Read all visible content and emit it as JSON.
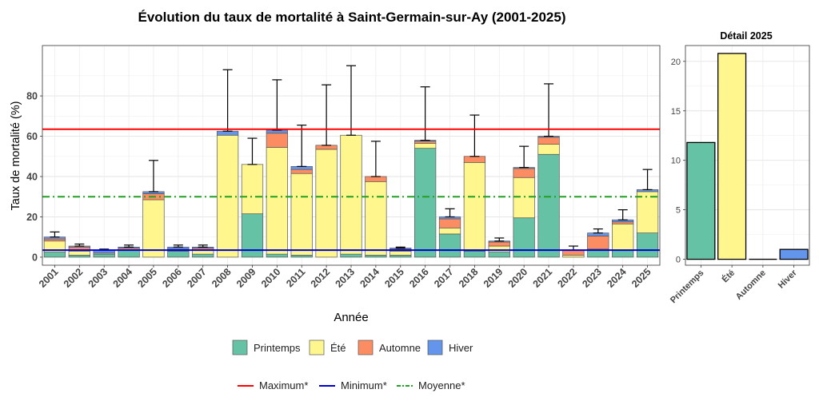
{
  "chart_data": [
    {
      "type": "bar",
      "stacked": true,
      "title": "Évolution du taux de mortalité à Saint-Germain-sur-Ay (2001-2025)",
      "xlabel": "Année",
      "ylabel": "Taux de mortalité (%)",
      "ylim": [
        -4,
        105
      ],
      "yticks": [
        0,
        20,
        40,
        60,
        80
      ],
      "grid": true,
      "categories": [
        "2001",
        "2002",
        "2003",
        "2004",
        "2005",
        "2006",
        "2007",
        "2008",
        "2009",
        "2010",
        "2011",
        "2012",
        "2013",
        "2014",
        "2015",
        "2016",
        "2017",
        "2018",
        "2019",
        "2020",
        "2021",
        "2022",
        "2023",
        "2024",
        "2025"
      ],
      "series": [
        {
          "name": "Printemps",
          "color": "#66c2a5",
          "values": [
            2.5,
            1.0,
            1.5,
            3.5,
            0,
            3.0,
            1.5,
            0,
            21.5,
            1.5,
            1.0,
            0,
            1.5,
            1.0,
            1.0,
            54.0,
            11.5,
            3.0,
            2.5,
            19.5,
            51.0,
            0,
            3.5,
            3.5,
            12.0
          ]
        },
        {
          "name": "Été",
          "color": "#fff78e",
          "values": [
            5.5,
            2.0,
            0.5,
            0,
            28.5,
            0,
            2.0,
            60.5,
            24.5,
            53.0,
            40.5,
            53.5,
            59.0,
            36.5,
            2.0,
            2.5,
            3.0,
            44.0,
            3.0,
            20.0,
            5.0,
            1.0,
            0.5,
            13.0,
            20.5
          ]
        },
        {
          "name": "Automne",
          "color": "#fc8d62",
          "values": [
            1.0,
            2.0,
            0,
            1.0,
            3.0,
            1.0,
            1.0,
            0,
            0,
            7.0,
            2.0,
            2.0,
            0,
            2.5,
            1.0,
            1.0,
            4.5,
            3.0,
            2.0,
            4.5,
            3.5,
            2.5,
            6.5,
            1.0,
            0
          ]
        },
        {
          "name": "Hiver",
          "color": "#6495ed",
          "values": [
            1.0,
            0.5,
            1.5,
            0.5,
            1.0,
            1.0,
            0.5,
            2.0,
            0,
            1.5,
            1.5,
            0,
            0,
            0,
            0.5,
            0.5,
            1.0,
            0,
            0.5,
            0.5,
            0.5,
            0,
            1.5,
            1.0,
            1.0
          ]
        }
      ],
      "error_bar_top": [
        12.5,
        6.5,
        4.0,
        6.0,
        48.0,
        6.0,
        6.0,
        93.0,
        59.0,
        88.0,
        65.5,
        85.5,
        95.0,
        57.5,
        5.0,
        84.5,
        24.0,
        70.5,
        9.5,
        55.0,
        86.0,
        5.5,
        14.0,
        23.5,
        43.5
      ],
      "reference_lines": [
        {
          "name": "Maximum*",
          "value": 63.5,
          "color": "#ff0000",
          "style": "solid"
        },
        {
          "name": "Minimum*",
          "value": 3.5,
          "color": "#0000cc",
          "style": "solid"
        },
        {
          "name": "Moyenne*",
          "value": 30.0,
          "color": "#22a022",
          "style": "dashdot"
        }
      ]
    },
    {
      "type": "bar",
      "title": "Détail 2025",
      "ylim": [
        -0.6,
        21.6
      ],
      "yticks": [
        0,
        5,
        10,
        15,
        20
      ],
      "grid": true,
      "categories": [
        "Printemps",
        "Été",
        "Automne",
        "Hiver"
      ],
      "values": [
        11.8,
        20.8,
        0,
        1.0
      ],
      "colors": [
        "#66c2a5",
        "#fff78e",
        "#fc8d62",
        "#6495ed"
      ]
    }
  ],
  "legend_fill": {
    "items": [
      {
        "label": "Printemps",
        "color": "#66c2a5"
      },
      {
        "label": "Été",
        "color": "#fff78e"
      },
      {
        "label": "Automne",
        "color": "#fc8d62"
      },
      {
        "label": "Hiver",
        "color": "#6495ed"
      }
    ]
  },
  "legend_lines": {
    "items": [
      {
        "label": "Maximum*",
        "color": "#ff0000",
        "style": "solid"
      },
      {
        "label": "Minimum*",
        "color": "#0000cc",
        "style": "solid"
      },
      {
        "label": "Moyenne*",
        "color": "#22a022",
        "style": "dashdot"
      }
    ]
  }
}
